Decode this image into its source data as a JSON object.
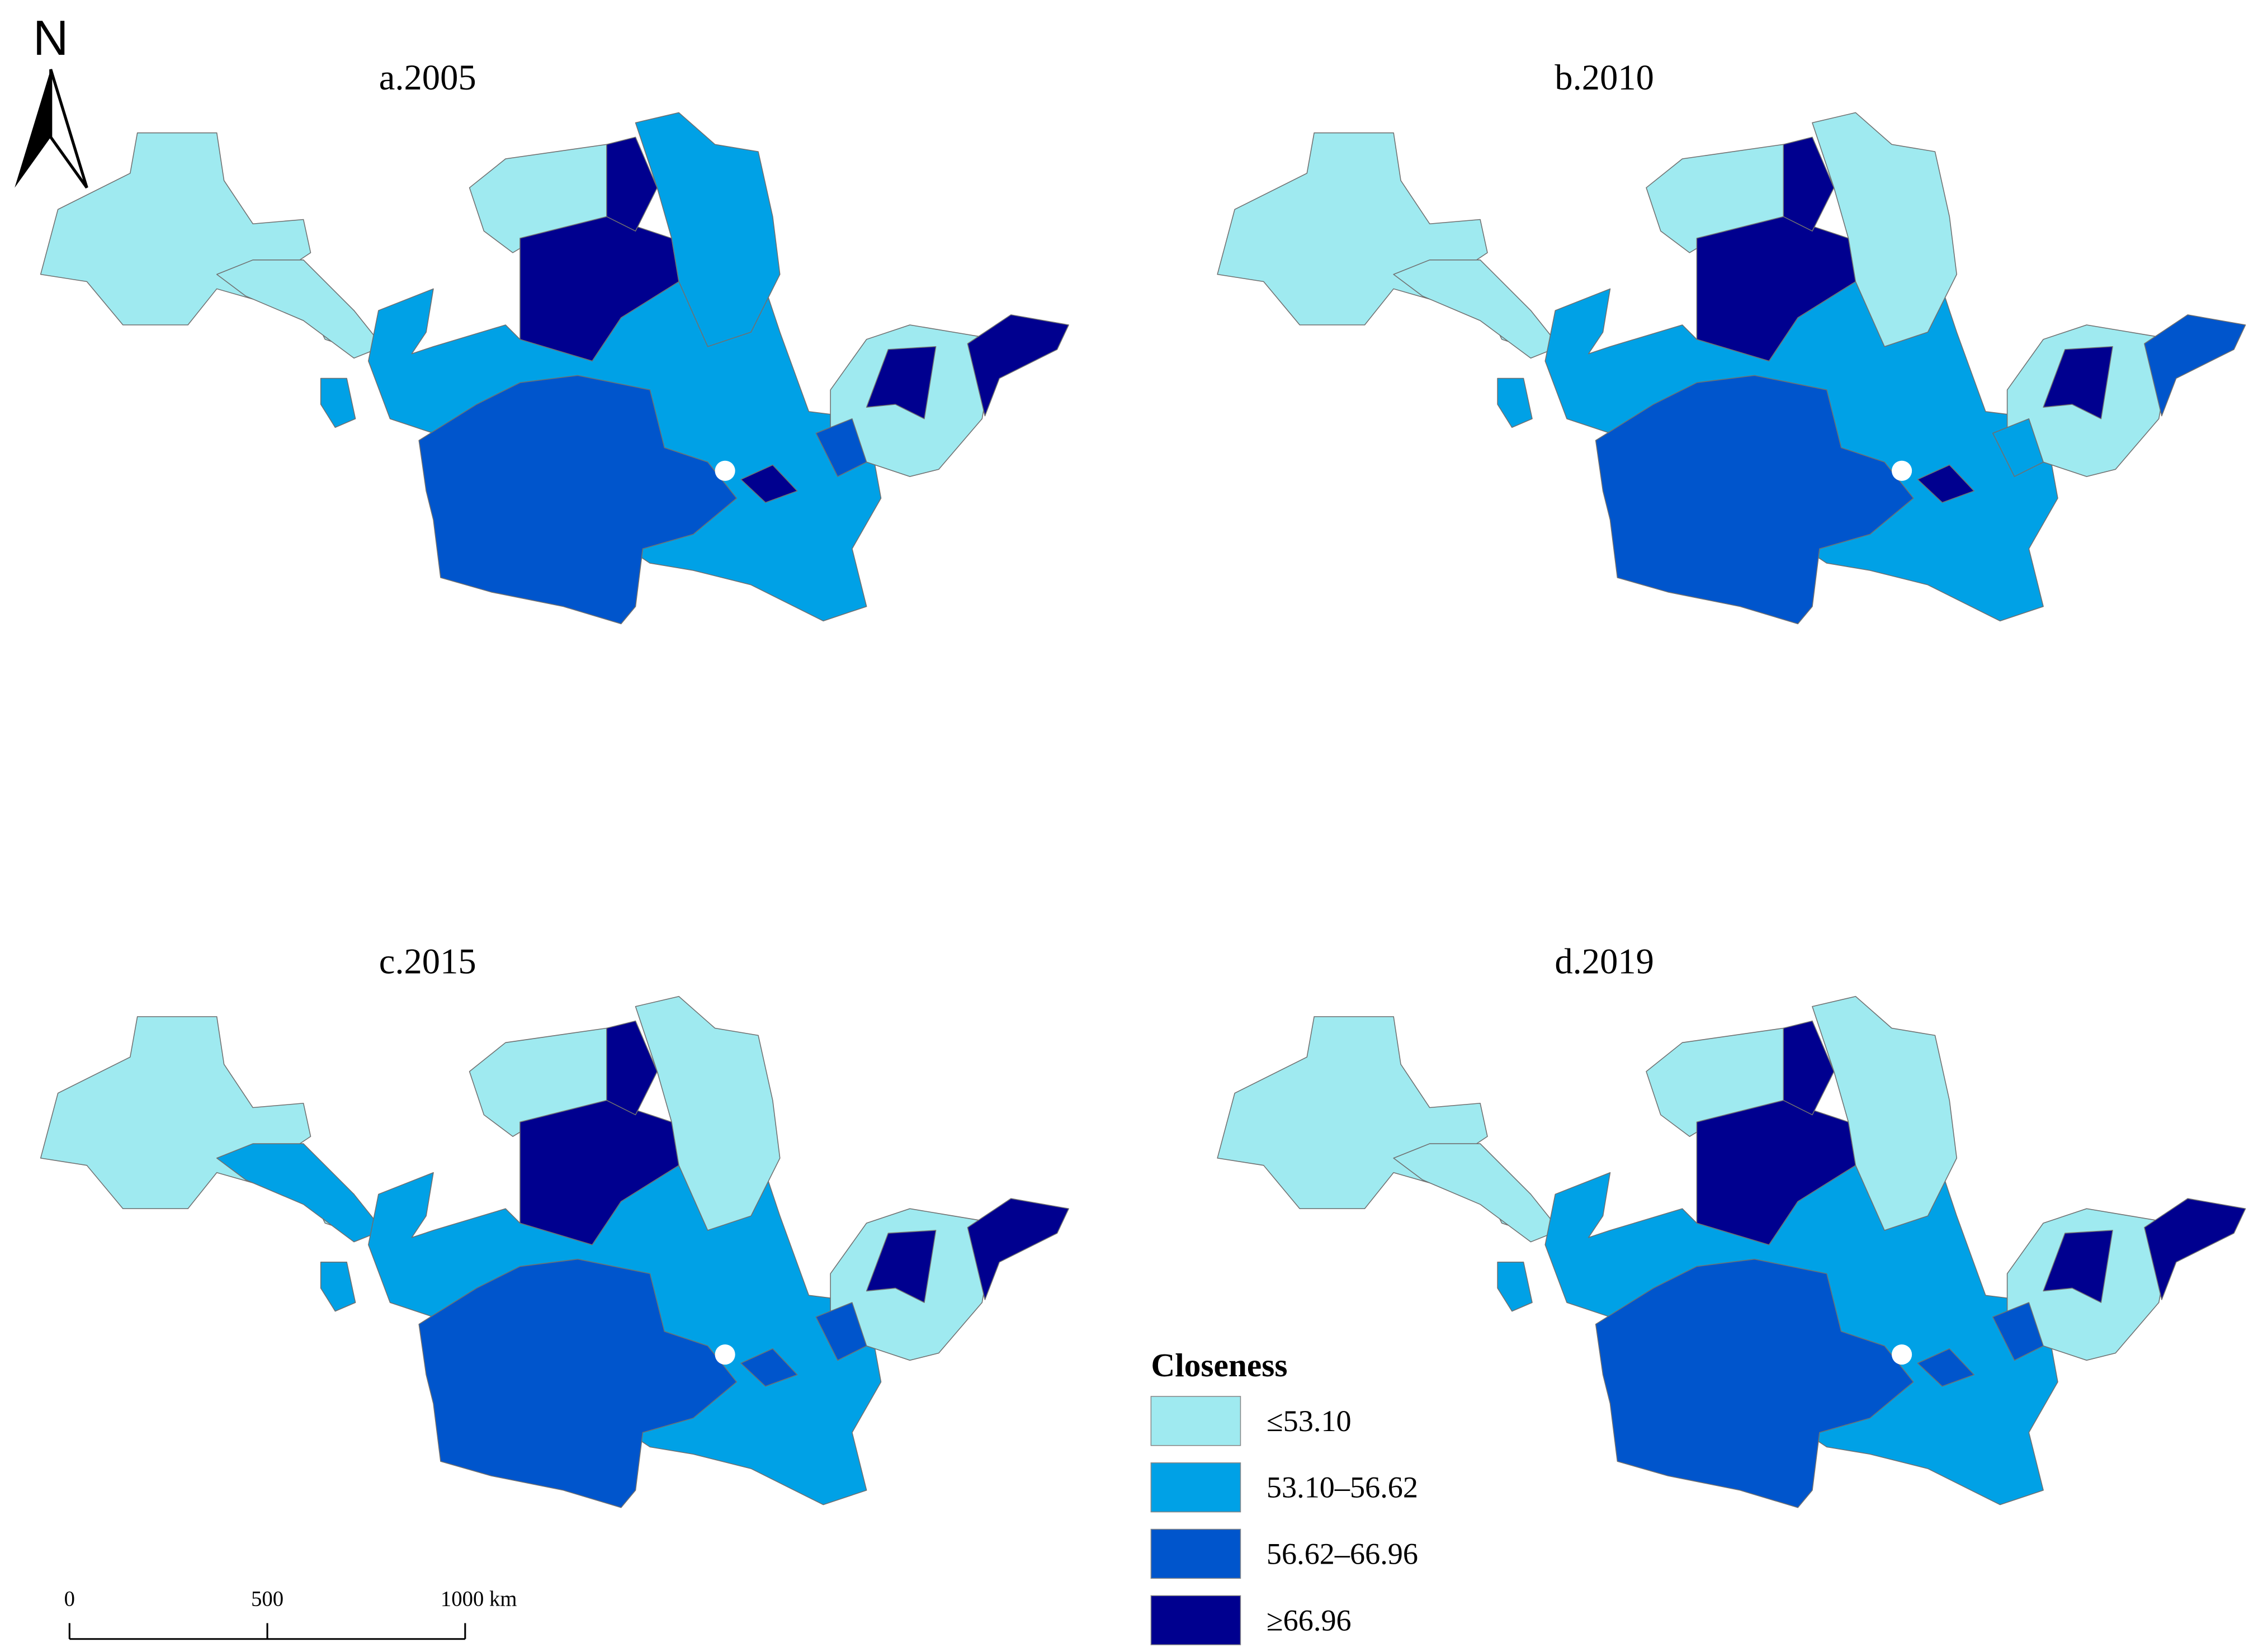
{
  "north_arrow": "N",
  "maps": [
    {
      "title": "a.2005"
    },
    {
      "title": "b.2010"
    },
    {
      "title": "c.2015"
    },
    {
      "title": "d.2019"
    }
  ],
  "legend": {
    "title": "Closeness",
    "items": [
      {
        "label": "≤53.10",
        "color": "#9feaf0"
      },
      {
        "label": "53.10–56.62",
        "color": "#00a1e6"
      },
      {
        "label": "56.62–66.96",
        "color": "#0055cc"
      },
      {
        "label": "≥66.96",
        "color": "#00008f"
      }
    ]
  },
  "scale_bar": {
    "labels": [
      "0",
      "500",
      "1000 km"
    ]
  }
}
